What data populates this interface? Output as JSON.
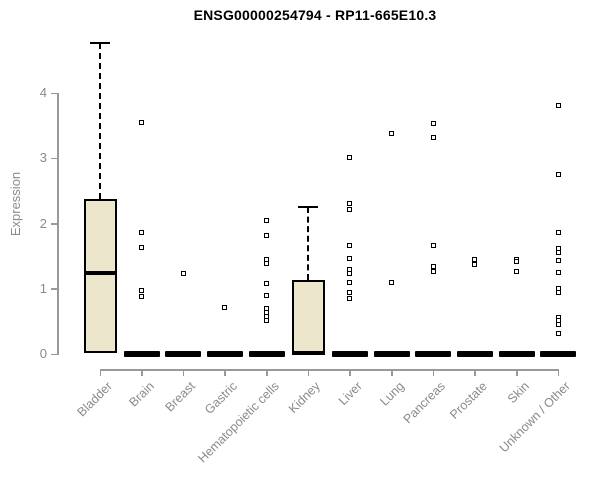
{
  "chart_data": {
    "type": "box",
    "title": "ENSG00000254794 - RP11-665E10.3",
    "xlabel": "",
    "ylabel": "Expression",
    "ylim": [
      0,
      4.8
    ],
    "yticks": [
      0,
      1,
      2,
      3,
      4
    ],
    "grid": false,
    "legend": "none",
    "box_fill_color": "#ece7cc",
    "box_border_color": "#000000",
    "axis_color": "#999999",
    "tick_label_color": "#8a8a8a",
    "categories": [
      "Bladder",
      "Brain",
      "Breast",
      "Gastric",
      "Hematopoietic cells",
      "Kidney",
      "Liver",
      "Lung",
      "Pancreas",
      "Prostate",
      "Skin",
      "Unknown / Other"
    ],
    "boxes": [
      {
        "category": "Bladder",
        "whisker_low": 0.02,
        "q1": 0.02,
        "median": 1.25,
        "q3": 2.37,
        "whisker_high": 4.77,
        "outliers": []
      },
      {
        "category": "Brain",
        "whisker_low": 0,
        "q1": 0,
        "median": 0,
        "q3": 0,
        "whisker_high": 0,
        "outliers": [
          3.55,
          1.86,
          1.63,
          0.98,
          0.88
        ]
      },
      {
        "category": "Breast",
        "whisker_low": 0,
        "q1": 0,
        "median": 0,
        "q3": 0,
        "whisker_high": 0,
        "outliers": [
          1.24
        ]
      },
      {
        "category": "Gastric",
        "whisker_low": 0,
        "q1": 0,
        "median": 0,
        "q3": 0,
        "whisker_high": 0,
        "outliers": [
          0.71
        ]
      },
      {
        "category": "Hematopoietic cells",
        "whisker_low": 0,
        "q1": 0,
        "median": 0,
        "q3": 0,
        "whisker_high": 0,
        "outliers": [
          2.04,
          1.81,
          1.45,
          1.39,
          1.08,
          0.9,
          0.7,
          0.63,
          0.57,
          0.51
        ]
      },
      {
        "category": "Kidney",
        "whisker_low": 0,
        "q1": 0,
        "median": 0.02,
        "q3": 1.14,
        "whisker_high": 2.26,
        "outliers": []
      },
      {
        "category": "Liver",
        "whisker_low": 0,
        "q1": 0,
        "median": 0,
        "q3": 0,
        "whisker_high": 0,
        "outliers": [
          3.02,
          2.31,
          2.21,
          1.66,
          1.47,
          1.3,
          1.23,
          1.1,
          0.94,
          0.85
        ]
      },
      {
        "category": "Lung",
        "whisker_low": 0,
        "q1": 0,
        "median": 0,
        "q3": 0,
        "whisker_high": 0,
        "outliers": [
          3.38,
          1.09
        ]
      },
      {
        "category": "Pancreas",
        "whisker_low": 0,
        "q1": 0,
        "median": 0,
        "q3": 0,
        "whisker_high": 0,
        "outliers": [
          3.53,
          3.32,
          1.66,
          1.34,
          1.27
        ]
      },
      {
        "category": "Prostate",
        "whisker_low": 0,
        "q1": 0,
        "median": 0,
        "q3": 0,
        "whisker_high": 0,
        "outliers": [
          1.45,
          1.38
        ]
      },
      {
        "category": "Skin",
        "whisker_low": 0,
        "q1": 0,
        "median": 0,
        "q3": 0,
        "whisker_high": 0,
        "outliers": [
          1.45,
          1.42,
          1.26
        ]
      },
      {
        "category": "Unknown / Other",
        "whisker_low": 0,
        "q1": 0,
        "median": 0,
        "q3": 0,
        "whisker_high": 0,
        "outliers": [
          3.81,
          2.76,
          1.86,
          1.62,
          1.55,
          1.43,
          1.25,
          1.0,
          0.94,
          0.56,
          0.51,
          0.46,
          0.32
        ]
      }
    ]
  }
}
